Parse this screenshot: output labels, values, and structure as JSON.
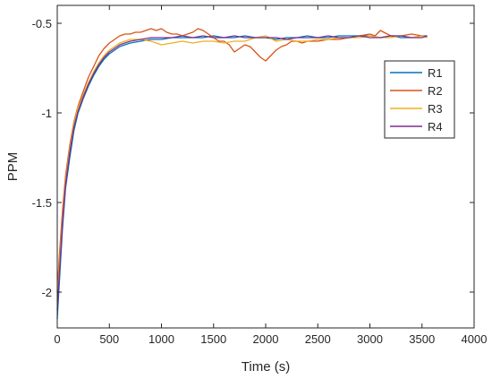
{
  "chart_data": {
    "type": "line",
    "title": "",
    "xlabel": "Time (s)",
    "ylabel": "PPM",
    "xlim": [
      0,
      4000
    ],
    "ylim": [
      -2.2,
      -0.4
    ],
    "xticks": [
      0,
      500,
      1000,
      1500,
      2000,
      2500,
      3000,
      3500,
      4000
    ],
    "yticks": [
      -0.5,
      -1,
      -1.5,
      -2
    ],
    "grid": false,
    "legend_position": "right",
    "series": [
      {
        "name": "R1",
        "color": "#0072BD",
        "x": [
          0,
          20,
          50,
          80,
          120,
          160,
          200,
          250,
          300,
          350,
          400,
          450,
          500,
          550,
          600,
          650,
          700,
          800,
          900,
          1000,
          1100,
          1200,
          1300,
          1400,
          1500,
          1600,
          1700,
          1800,
          1900,
          2000,
          2100,
          2200,
          2300,
          2400,
          2500,
          2600,
          2700,
          2800,
          2900,
          3000,
          3100,
          3200,
          3300,
          3400,
          3500,
          3550
        ],
        "y": [
          -2.15,
          -1.95,
          -1.65,
          -1.42,
          -1.25,
          -1.1,
          -1.0,
          -0.92,
          -0.85,
          -0.79,
          -0.74,
          -0.7,
          -0.67,
          -0.65,
          -0.63,
          -0.62,
          -0.61,
          -0.6,
          -0.59,
          -0.59,
          -0.58,
          -0.58,
          -0.58,
          -0.58,
          -0.57,
          -0.58,
          -0.58,
          -0.57,
          -0.58,
          -0.58,
          -0.59,
          -0.58,
          -0.58,
          -0.57,
          -0.58,
          -0.58,
          -0.57,
          -0.57,
          -0.57,
          -0.57,
          -0.58,
          -0.57,
          -0.58,
          -0.58,
          -0.57,
          -0.57
        ]
      },
      {
        "name": "R2",
        "color": "#D95319",
        "x": [
          0,
          20,
          50,
          80,
          120,
          160,
          200,
          250,
          300,
          350,
          400,
          450,
          500,
          550,
          600,
          650,
          700,
          750,
          800,
          850,
          900,
          950,
          1000,
          1050,
          1100,
          1150,
          1200,
          1250,
          1300,
          1350,
          1400,
          1450,
          1500,
          1550,
          1600,
          1650,
          1700,
          1750,
          1800,
          1850,
          1900,
          1950,
          2000,
          2050,
          2100,
          2150,
          2200,
          2250,
          2300,
          2350,
          2400,
          2500,
          2600,
          2700,
          2800,
          2900,
          3000,
          3050,
          3100,
          3200,
          3300,
          3400,
          3500,
          3550
        ],
        "y": [
          -2.0,
          -1.8,
          -1.55,
          -1.35,
          -1.18,
          -1.05,
          -0.96,
          -0.88,
          -0.8,
          -0.74,
          -0.68,
          -0.64,
          -0.61,
          -0.59,
          -0.57,
          -0.56,
          -0.56,
          -0.55,
          -0.55,
          -0.54,
          -0.53,
          -0.54,
          -0.53,
          -0.55,
          -0.56,
          -0.56,
          -0.57,
          -0.56,
          -0.55,
          -0.53,
          -0.54,
          -0.56,
          -0.58,
          -0.6,
          -0.6,
          -0.62,
          -0.66,
          -0.64,
          -0.62,
          -0.63,
          -0.66,
          -0.69,
          -0.71,
          -0.68,
          -0.65,
          -0.63,
          -0.62,
          -0.6,
          -0.6,
          -0.61,
          -0.6,
          -0.6,
          -0.59,
          -0.59,
          -0.58,
          -0.57,
          -0.56,
          -0.57,
          -0.54,
          -0.57,
          -0.57,
          -0.56,
          -0.57,
          -0.58
        ]
      },
      {
        "name": "R3",
        "color": "#EDB120",
        "x": [
          0,
          20,
          50,
          80,
          120,
          160,
          200,
          250,
          300,
          350,
          400,
          450,
          500,
          550,
          600,
          650,
          700,
          800,
          900,
          1000,
          1100,
          1200,
          1300,
          1400,
          1500,
          1600,
          1700,
          1800,
          1900,
          2000,
          2100,
          2200,
          2300,
          2400,
          2500,
          2600,
          2700,
          2800,
          2900,
          3000,
          3100,
          3200,
          3300,
          3400,
          3500,
          3550
        ],
        "y": [
          -2.05,
          -1.85,
          -1.6,
          -1.38,
          -1.2,
          -1.06,
          -0.97,
          -0.9,
          -0.83,
          -0.77,
          -0.72,
          -0.68,
          -0.65,
          -0.63,
          -0.61,
          -0.6,
          -0.59,
          -0.59,
          -0.6,
          -0.62,
          -0.61,
          -0.6,
          -0.61,
          -0.6,
          -0.6,
          -0.61,
          -0.6,
          -0.6,
          -0.58,
          -0.57,
          -0.6,
          -0.59,
          -0.6,
          -0.6,
          -0.59,
          -0.59,
          -0.58,
          -0.58,
          -0.58,
          -0.57,
          -0.58,
          -0.58,
          -0.57,
          -0.58,
          -0.57,
          -0.58
        ]
      },
      {
        "name": "R4",
        "color": "#7E2F8E",
        "x": [
          0,
          20,
          50,
          80,
          120,
          160,
          200,
          250,
          300,
          350,
          400,
          450,
          500,
          550,
          600,
          650,
          700,
          800,
          900,
          1000,
          1100,
          1200,
          1300,
          1400,
          1500,
          1600,
          1700,
          1800,
          1900,
          2000,
          2100,
          2200,
          2300,
          2400,
          2500,
          2600,
          2700,
          2800,
          2900,
          3000,
          3100,
          3200,
          3300,
          3400,
          3500,
          3550
        ],
        "y": [
          -2.1,
          -1.9,
          -1.62,
          -1.4,
          -1.22,
          -1.08,
          -0.99,
          -0.91,
          -0.84,
          -0.78,
          -0.73,
          -0.69,
          -0.66,
          -0.64,
          -0.62,
          -0.61,
          -0.6,
          -0.59,
          -0.58,
          -0.58,
          -0.58,
          -0.57,
          -0.58,
          -0.57,
          -0.58,
          -0.58,
          -0.57,
          -0.58,
          -0.58,
          -0.58,
          -0.58,
          -0.59,
          -0.58,
          -0.58,
          -0.58,
          -0.57,
          -0.58,
          -0.58,
          -0.57,
          -0.58,
          -0.58,
          -0.57,
          -0.57,
          -0.58,
          -0.58,
          -0.57
        ]
      }
    ]
  }
}
